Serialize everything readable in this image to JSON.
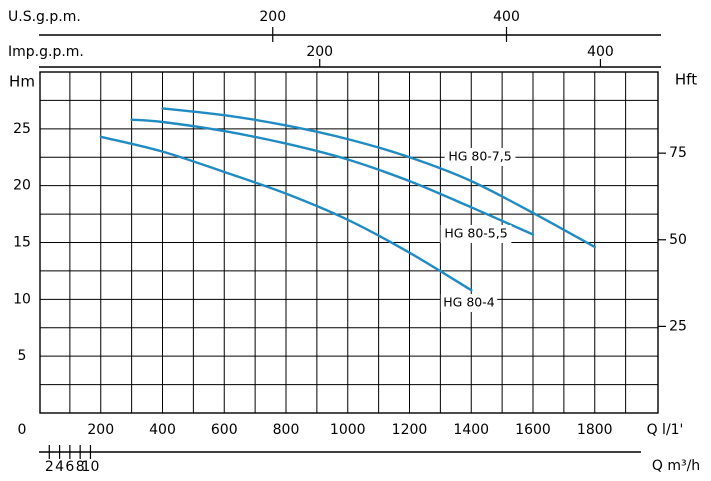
{
  "chart_data": {
    "type": "line",
    "title": "",
    "colors": {
      "curve": "#1f8bc2",
      "grid": "#000000",
      "text": "#000000",
      "background": "#ffffff"
    },
    "axes": {
      "x_main": {
        "unit_label": "Q  l/1'",
        "zero_label": "0",
        "range": [
          0,
          2000
        ],
        "tick_values": [
          200,
          400,
          600,
          800,
          1000,
          1200,
          1400,
          1600,
          1800
        ],
        "tick_labels": [
          "200",
          "400",
          "600",
          "800",
          "1000",
          "1200",
          "1400",
          "1600",
          "1800"
        ]
      },
      "x_m3h": {
        "unit_label": "Q  m³/h",
        "tick_values": [
          2,
          4,
          6,
          8,
          10
        ],
        "tick_labels": [
          "2",
          "4",
          "6",
          "8",
          "10"
        ]
      },
      "x_usgpm": {
        "unit_label": "U.S.g.p.m.",
        "tick_values": [
          200,
          400
        ],
        "tick_labels": [
          "200",
          "400"
        ]
      },
      "x_impgpm": {
        "unit_label": "Imp.g.p.m.",
        "tick_values": [
          200,
          400
        ],
        "tick_labels": [
          "200",
          "400"
        ]
      },
      "y_left": {
        "unit_label": "Hm",
        "range": [
          0,
          30
        ],
        "tick_values": [
          5,
          10,
          15,
          20,
          25
        ],
        "tick_labels": [
          "5",
          "10",
          "15",
          "20",
          "25"
        ]
      },
      "y_right": {
        "unit_label": "Hft",
        "tick_values": [
          25,
          50,
          75
        ],
        "tick_labels": [
          "25",
          "50",
          "75"
        ]
      }
    },
    "series": [
      {
        "name": "HG 80-7,5",
        "x": [
          400,
          600,
          800,
          1000,
          1200,
          1400,
          1600,
          1800
        ],
        "y": [
          26.8,
          26.2,
          25.3,
          24.1,
          22.5,
          20.4,
          17.6,
          14.6
        ]
      },
      {
        "name": "HG 80-5,5",
        "x": [
          300,
          400,
          600,
          800,
          1000,
          1200,
          1400,
          1600
        ],
        "y": [
          25.8,
          25.6,
          24.8,
          23.7,
          22.3,
          20.4,
          18.1,
          15.7
        ]
      },
      {
        "name": "HG 80-4",
        "x": [
          200,
          400,
          600,
          800,
          1000,
          1200,
          1400
        ],
        "y": [
          24.3,
          23.0,
          21.2,
          19.3,
          17.0,
          14.1,
          10.8
        ]
      }
    ]
  }
}
